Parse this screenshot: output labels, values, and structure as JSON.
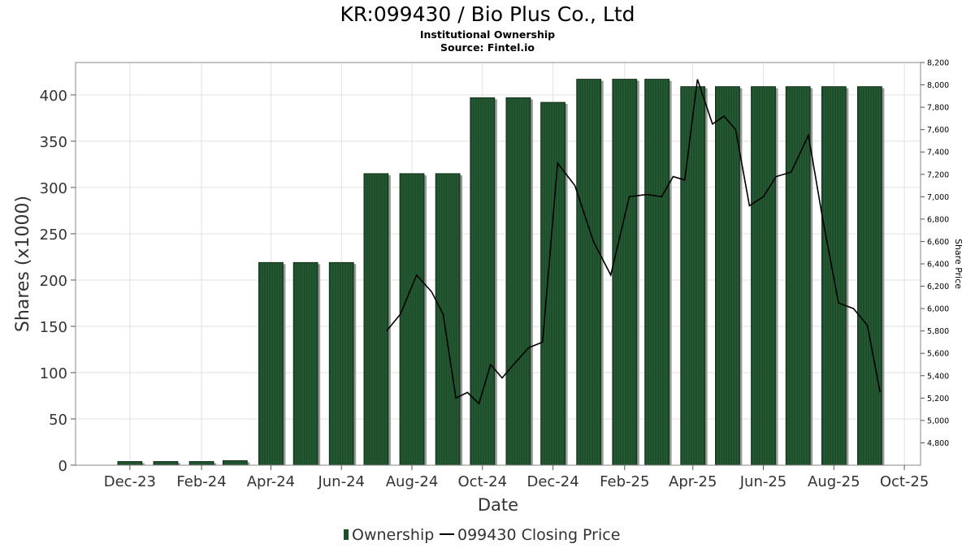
{
  "chart_data": {
    "type": "bar",
    "title": "KR:099430 / Bio Plus Co., Ltd",
    "subtitle_1": "Institutional Ownership",
    "subtitle_2": "Source: Fintel.io",
    "xlabel": "Date",
    "ylabel": "Shares (x1000)",
    "y2label": "Share Price",
    "ylim": [
      0,
      435
    ],
    "y2lim": [
      4600,
      8200
    ],
    "yticks": [
      0,
      50,
      100,
      150,
      200,
      250,
      300,
      350,
      400
    ],
    "y2ticks": [
      4800,
      5000,
      5200,
      5400,
      5600,
      5800,
      6000,
      6200,
      6400,
      6600,
      6800,
      7000,
      7200,
      7400,
      7600,
      7800,
      8000,
      8200
    ],
    "y2tick_labels": [
      "4,800",
      "5,000",
      "5,200",
      "5,400",
      "5,600",
      "5,800",
      "6,000",
      "6,200",
      "6,400",
      "6,600",
      "6,800",
      "7,000",
      "7,200",
      "7,400",
      "7,600",
      "7,800",
      "8,000",
      "8,200"
    ],
    "xlim": [
      "2023-10-15",
      "2025-10-15"
    ],
    "xticks": [
      {
        "date": "2023-12-01",
        "label": "Dec-23"
      },
      {
        "date": "2024-02-01",
        "label": "Feb-24"
      },
      {
        "date": "2024-04-01",
        "label": "Apr-24"
      },
      {
        "date": "2024-06-01",
        "label": "Jun-24"
      },
      {
        "date": "2024-08-01",
        "label": "Aug-24"
      },
      {
        "date": "2024-10-01",
        "label": "Oct-24"
      },
      {
        "date": "2024-12-01",
        "label": "Dec-24"
      },
      {
        "date": "2025-02-01",
        "label": "Feb-25"
      },
      {
        "date": "2025-04-01",
        "label": "Apr-25"
      },
      {
        "date": "2025-06-01",
        "label": "Jun-25"
      },
      {
        "date": "2025-08-01",
        "label": "Aug-25"
      },
      {
        "date": "2025-10-01",
        "label": "Oct-25"
      }
    ],
    "series": [
      {
        "name": "Ownership",
        "type": "bar",
        "color": "#1e4d2b",
        "x": [
          "2023-12-01",
          "2024-01-01",
          "2024-02-01",
          "2024-03-01",
          "2024-04-01",
          "2024-05-01",
          "2024-06-01",
          "2024-07-01",
          "2024-08-01",
          "2024-09-01",
          "2024-10-01",
          "2024-11-01",
          "2024-12-01",
          "2025-01-01",
          "2025-02-01",
          "2025-03-01",
          "2025-04-01",
          "2025-05-01",
          "2025-06-01",
          "2025-07-01",
          "2025-08-01",
          "2025-09-01"
        ],
        "values": [
          4,
          4,
          4,
          5,
          219,
          219,
          219,
          315,
          315,
          315,
          397,
          397,
          392,
          417,
          417,
          417,
          409,
          409,
          409,
          409,
          409,
          409
        ]
      },
      {
        "name": "099430 Closing Price",
        "type": "line",
        "color": "#000000",
        "x": [
          "2024-07-10",
          "2024-07-22",
          "2024-08-05",
          "2024-08-18",
          "2024-08-28",
          "2024-09-08",
          "2024-09-18",
          "2024-09-28",
          "2024-10-08",
          "2024-10-18",
          "2024-10-28",
          "2024-11-10",
          "2024-11-22",
          "2024-12-05",
          "2024-12-20",
          "2025-01-05",
          "2025-01-20",
          "2025-02-05",
          "2025-02-20",
          "2025-03-05",
          "2025-03-15",
          "2025-03-25",
          "2025-04-05",
          "2025-04-18",
          "2025-04-28",
          "2025-05-08",
          "2025-05-20",
          "2025-06-01",
          "2025-06-12",
          "2025-06-25",
          "2025-07-10",
          "2025-07-22",
          "2025-08-05",
          "2025-08-18",
          "2025-08-30",
          "2025-09-10"
        ],
        "values": [
          5800,
          5950,
          6300,
          6150,
          5950,
          5200,
          5250,
          5150,
          5500,
          5380,
          5500,
          5650,
          5700,
          7300,
          7100,
          6600,
          6300,
          7000,
          7020,
          7000,
          7180,
          7150,
          8050,
          7650,
          7720,
          7600,
          6920,
          7000,
          7180,
          7220,
          7550,
          6820,
          6050,
          6000,
          5850,
          5250
        ]
      }
    ],
    "legend": [
      {
        "label": "Ownership",
        "kind": "bar",
        "color": "#1e4d2b"
      },
      {
        "label": "099430 Closing Price",
        "kind": "line",
        "color": "#000000"
      }
    ],
    "legend_position": "bottom-center",
    "grid": true
  }
}
